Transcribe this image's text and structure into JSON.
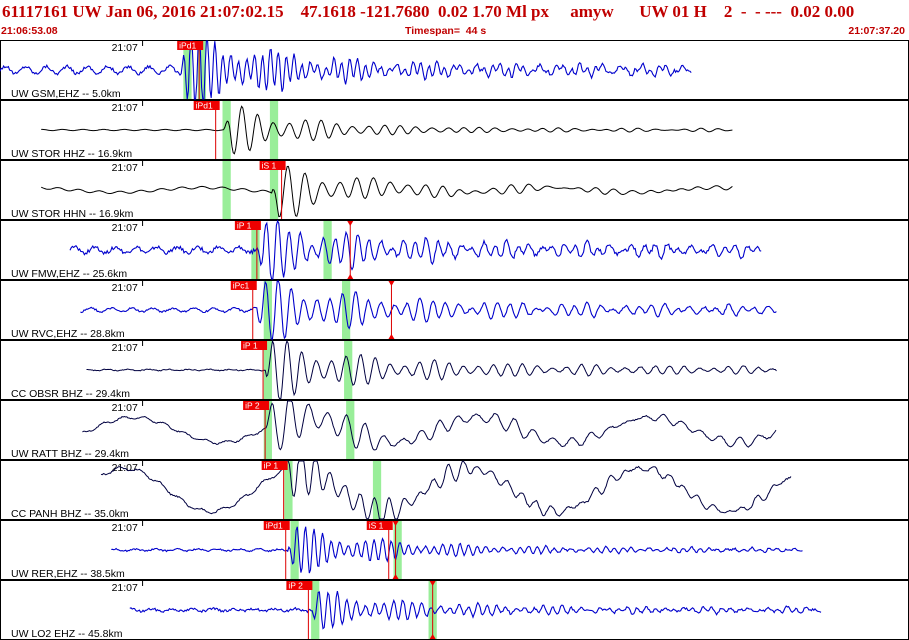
{
  "header": {
    "title": "61117161 UW Jan 06, 2016 21:07:02.15    47.1618 -121.7680  0.02 1.70 Ml px     amyw      UW 01 H    2  -  - ---  0.02 0.00",
    "start_time": "21:06:53.08",
    "timespan": "Timespan=  44 s",
    "end_time": "21:07:37.20"
  },
  "colors": {
    "frame": "#000000",
    "trace_blue": "#0000cc",
    "trace_black": "#000000",
    "trace_navy": "#000040",
    "pick_fill": "#ee0000",
    "pick_line": "#dd0000",
    "window_green": "#99ee99",
    "header_text": "#c00000"
  },
  "chart_data": {
    "type": "line",
    "title": "",
    "x_units": "seconds from 21:06:53.08",
    "xlim": [
      0,
      44.12
    ],
    "minute_tick": {
      "label": "21:07",
      "t": 6.92
    },
    "panels": [
      {
        "label": "UW GSM,EHZ -- 5.0km",
        "color": "blue",
        "t0": 0.0,
        "t1": 33.6,
        "onset": 8.8,
        "amp": 0.12,
        "peak": 1.25,
        "coda": 0.22,
        "freq": 2.6,
        "noise": 0.1,
        "long": 0,
        "picks": [
          {
            "label": "iPd1",
            "t": 8.6
          }
        ],
        "windows": [
          {
            "t0": 8.9,
            "t1": 9.3
          },
          {
            "t0": 9.6,
            "t1": 10.0
          }
        ],
        "markers": []
      },
      {
        "label": "UW STOR HHZ -- 16.9km",
        "color": "black",
        "t0": 2.0,
        "t1": 35.6,
        "onset": 10.9,
        "amp": 0.02,
        "peak": 0.8,
        "coda": 0.08,
        "freq": 1.3,
        "noise": 0.0,
        "long": 0,
        "picks": [
          {
            "label": "iPd1",
            "t": 9.4
          }
        ],
        "windows": [
          {
            "t0": 10.8,
            "t1": 11.2
          },
          {
            "t0": 13.1,
            "t1": 13.5
          }
        ],
        "markers": []
      },
      {
        "label": "UW STOR HHN -- 16.9km",
        "color": "black",
        "t0": 2.0,
        "t1": 35.6,
        "onset": 13.2,
        "amp": 0.04,
        "peak": 0.85,
        "coda": 0.1,
        "freq": 1.2,
        "noise": 0.0,
        "long": 0.08,
        "picks": [
          {
            "label": "iS 1",
            "t": 12.6
          }
        ],
        "windows": [
          {
            "t0": 10.8,
            "t1": 11.2
          },
          {
            "t0": 13.1,
            "t1": 13.5
          }
        ],
        "markers": []
      },
      {
        "label": "UW FMW,EHZ -- 25.6km",
        "color": "blue",
        "t0": 3.4,
        "t1": 37.0,
        "onset": 12.5,
        "amp": 0.1,
        "peak": 0.8,
        "coda": 0.3,
        "freq": 1.8,
        "noise": 0.12,
        "long": 0,
        "picks": [
          {
            "label": "iP 1",
            "t": 11.4
          }
        ],
        "windows": [
          {
            "t0": 12.2,
            "t1": 12.6
          },
          {
            "t0": 15.7,
            "t1": 16.1
          }
        ],
        "markers": [
          {
            "t": 17.0
          }
        ]
      },
      {
        "label": "UW RVC,EHZ -- 28.8km",
        "color": "blue",
        "t0": 3.9,
        "t1": 37.7,
        "onset": 12.5,
        "amp": 0.06,
        "peak": 0.85,
        "coda": 0.3,
        "freq": 1.6,
        "noise": 0.06,
        "long": 0,
        "picks": [
          {
            "label": "iPc1",
            "t": 11.2
          }
        ],
        "windows": [
          {
            "t0": 12.8,
            "t1": 13.2
          },
          {
            "t0": 16.6,
            "t1": 17.0
          }
        ],
        "markers": [
          {
            "t": 19.0
          }
        ]
      },
      {
        "label": "CC OBSR BHZ -- 29.4km",
        "color": "navy",
        "t0": 4.2,
        "t1": 37.7,
        "onset": 12.9,
        "amp": 0.02,
        "peak": 0.85,
        "coda": 0.25,
        "freq": 1.4,
        "noise": 0.03,
        "long": 0,
        "picks": [
          {
            "label": "iP 1",
            "t": 11.7
          }
        ],
        "windows": [
          {
            "t0": 12.8,
            "t1": 13.2
          },
          {
            "t0": 16.7,
            "t1": 17.1
          }
        ],
        "markers": []
      },
      {
        "label": "UW RATT BHZ -- 29.4km",
        "color": "navy",
        "t0": 4.0,
        "t1": 37.7,
        "onset": 12.9,
        "amp": 0.05,
        "peak": 0.7,
        "coda": 0.25,
        "freq": 1.1,
        "noise": 0.04,
        "long": 0.42,
        "picks": [
          {
            "label": "iP 2",
            "t": 11.8
          }
        ],
        "windows": [
          {
            "t0": 12.8,
            "t1": 13.2
          },
          {
            "t0": 16.8,
            "t1": 17.2
          }
        ],
        "markers": []
      },
      {
        "label": "CC PANH BHZ -- 35.0km",
        "color": "navy",
        "t0": 4.9,
        "t1": 38.4,
        "onset": 13.8,
        "amp": 0.06,
        "peak": 0.75,
        "coda": 0.22,
        "freq": 1.4,
        "noise": 0.05,
        "long": 0.72,
        "picks": [
          {
            "label": "iP 1",
            "t": 12.7
          }
        ],
        "windows": [
          {
            "t0": 13.8,
            "t1": 14.2
          },
          {
            "t0": 18.1,
            "t1": 18.5
          }
        ],
        "markers": []
      },
      {
        "label": "UW RER,EHZ -- 38.5km",
        "color": "blue",
        "t0": 5.4,
        "t1": 39.0,
        "onset": 14.0,
        "amp": 0.03,
        "peak": 0.75,
        "coda": 0.12,
        "freq": 2.4,
        "noise": 0.05,
        "long": 0,
        "picks": [
          {
            "label": "iPd1",
            "t": 12.8
          },
          {
            "label": "iS 1",
            "t": 17.8
          }
        ],
        "windows": [
          {
            "t0": 14.1,
            "t1": 14.5
          },
          {
            "t0": 19.1,
            "t1": 19.5
          }
        ],
        "markers": [
          {
            "t": 19.2
          }
        ]
      },
      {
        "label": "UW LO2 EHZ -- 45.8km",
        "color": "blue",
        "t0": 6.3,
        "t1": 39.9,
        "onset": 15.1,
        "amp": 0.04,
        "peak": 0.55,
        "coda": 0.14,
        "freq": 2.2,
        "noise": 0.08,
        "long": 0,
        "picks": [
          {
            "label": "iP 2",
            "t": 13.9
          }
        ],
        "windows": [
          {
            "t0": 15.1,
            "t1": 15.5
          },
          {
            "t0": 20.8,
            "t1": 21.2
          }
        ],
        "markers": [
          {
            "t": 21.0
          }
        ]
      }
    ]
  }
}
